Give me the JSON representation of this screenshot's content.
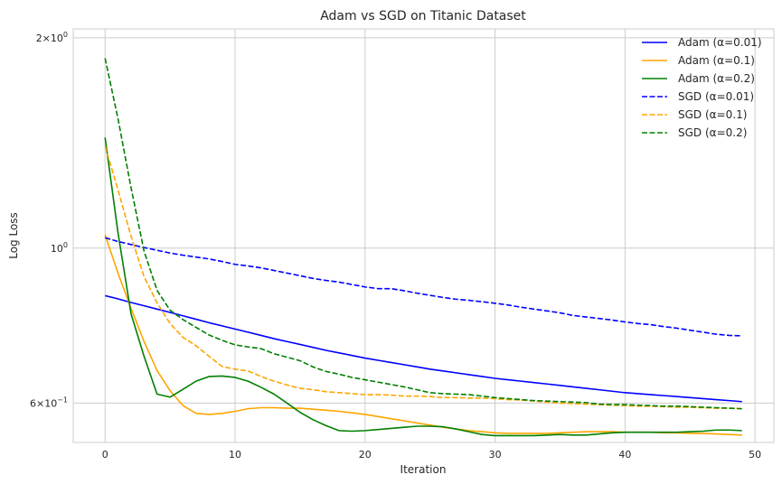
{
  "chart_data": {
    "type": "line",
    "title": "Adam vs SGD on Titanic Dataset",
    "xlabel": "Iteration",
    "ylabel": "Log Loss",
    "yscale": "log",
    "xlim": [
      -2.45,
      51.45
    ],
    "ylim": [
      0.527,
      2.06
    ],
    "grid": true,
    "legend_position": "top-right",
    "x_ticks": [
      0,
      10,
      20,
      30,
      40,
      50
    ],
    "x_tick_labels": [
      "0",
      "10",
      "20",
      "30",
      "40",
      "50"
    ],
    "y_ticks": [
      2.0,
      1.0,
      0.6
    ],
    "y_tick_labels": [
      {
        "base": "2",
        "exp": "0"
      },
      {
        "base": "10",
        "exp": "0"
      },
      {
        "base": "6",
        "exp": "−1"
      }
    ],
    "y_tick_prefix_times": [
      true,
      false,
      true
    ],
    "series": [
      {
        "name": "Adam (α=0.01)",
        "color": "#0000ff",
        "style": "solid",
        "values": [
          0.855,
          0.846,
          0.836,
          0.827,
          0.818,
          0.809,
          0.8,
          0.791,
          0.782,
          0.774,
          0.766,
          0.758,
          0.75,
          0.742,
          0.735,
          0.728,
          0.721,
          0.714,
          0.708,
          0.702,
          0.696,
          0.691,
          0.686,
          0.681,
          0.676,
          0.671,
          0.667,
          0.663,
          0.659,
          0.655,
          0.651,
          0.648,
          0.645,
          0.642,
          0.639,
          0.636,
          0.633,
          0.63,
          0.627,
          0.624,
          0.621,
          0.619,
          0.617,
          0.615,
          0.613,
          0.611,
          0.609,
          0.607,
          0.605,
          0.603
        ]
      },
      {
        "name": "Adam (α=0.1)",
        "color": "#ffa500",
        "style": "solid",
        "values": [
          1.045,
          0.92,
          0.82,
          0.735,
          0.668,
          0.625,
          0.595,
          0.58,
          0.578,
          0.58,
          0.584,
          0.589,
          0.591,
          0.591,
          0.59,
          0.59,
          0.588,
          0.586,
          0.584,
          0.581,
          0.578,
          0.574,
          0.57,
          0.566,
          0.562,
          0.558,
          0.554,
          0.551,
          0.548,
          0.546,
          0.544,
          0.543,
          0.543,
          0.543,
          0.543,
          0.544,
          0.545,
          0.546,
          0.546,
          0.546,
          0.545,
          0.545,
          0.545,
          0.544,
          0.544,
          0.543,
          0.543,
          0.542,
          0.541,
          0.54
        ]
      },
      {
        "name": "Adam (α=0.2)",
        "color": "#008000",
        "style": "solid",
        "values": [
          1.44,
          1.05,
          0.805,
          0.7,
          0.618,
          0.612,
          0.628,
          0.645,
          0.655,
          0.656,
          0.653,
          0.645,
          0.632,
          0.618,
          0.6,
          0.582,
          0.568,
          0.557,
          0.548,
          0.547,
          0.548,
          0.55,
          0.552,
          0.554,
          0.556,
          0.556,
          0.555,
          0.551,
          0.546,
          0.541,
          0.539,
          0.539,
          0.539,
          0.539,
          0.54,
          0.541,
          0.54,
          0.54,
          0.542,
          0.544,
          0.545,
          0.545,
          0.545,
          0.545,
          0.545,
          0.546,
          0.547,
          0.549,
          0.549,
          0.548
        ]
      },
      {
        "name": "SGD (α=0.01)",
        "color": "#0000ff",
        "style": "dashed",
        "values": [
          1.035,
          1.022,
          1.012,
          1.002,
          0.993,
          0.984,
          0.977,
          0.971,
          0.965,
          0.957,
          0.948,
          0.943,
          0.937,
          0.929,
          0.921,
          0.913,
          0.905,
          0.899,
          0.894,
          0.887,
          0.88,
          0.875,
          0.875,
          0.869,
          0.862,
          0.856,
          0.85,
          0.845,
          0.842,
          0.838,
          0.834,
          0.829,
          0.823,
          0.818,
          0.813,
          0.808,
          0.801,
          0.797,
          0.793,
          0.789,
          0.784,
          0.78,
          0.777,
          0.772,
          0.768,
          0.763,
          0.758,
          0.753,
          0.75,
          0.749
        ]
      },
      {
        "name": "SGD (α=0.1)",
        "color": "#ffa500",
        "style": "dashed",
        "values": [
          1.4,
          1.21,
          1.04,
          0.91,
          0.835,
          0.78,
          0.745,
          0.725,
          0.7,
          0.677,
          0.671,
          0.667,
          0.655,
          0.645,
          0.637,
          0.63,
          0.627,
          0.623,
          0.621,
          0.619,
          0.617,
          0.617,
          0.616,
          0.614,
          0.614,
          0.613,
          0.611,
          0.611,
          0.61,
          0.61,
          0.609,
          0.607,
          0.606,
          0.604,
          0.602,
          0.6,
          0.599,
          0.598,
          0.597,
          0.596,
          0.595,
          0.594,
          0.594,
          0.593,
          0.592,
          0.592,
          0.591,
          0.59,
          0.59,
          0.589
        ]
      },
      {
        "name": "SGD (α=0.2)",
        "color": "#008000",
        "style": "dashed",
        "values": [
          1.87,
          1.53,
          1.22,
          0.99,
          0.87,
          0.815,
          0.79,
          0.77,
          0.751,
          0.738,
          0.727,
          0.722,
          0.718,
          0.706,
          0.698,
          0.69,
          0.676,
          0.666,
          0.66,
          0.653,
          0.648,
          0.643,
          0.638,
          0.633,
          0.627,
          0.621,
          0.619,
          0.618,
          0.617,
          0.614,
          0.611,
          0.609,
          0.607,
          0.605,
          0.604,
          0.603,
          0.602,
          0.601,
          0.598,
          0.597,
          0.597,
          0.596,
          0.595,
          0.594,
          0.594,
          0.593,
          0.592,
          0.591,
          0.59,
          0.589
        ]
      }
    ]
  }
}
